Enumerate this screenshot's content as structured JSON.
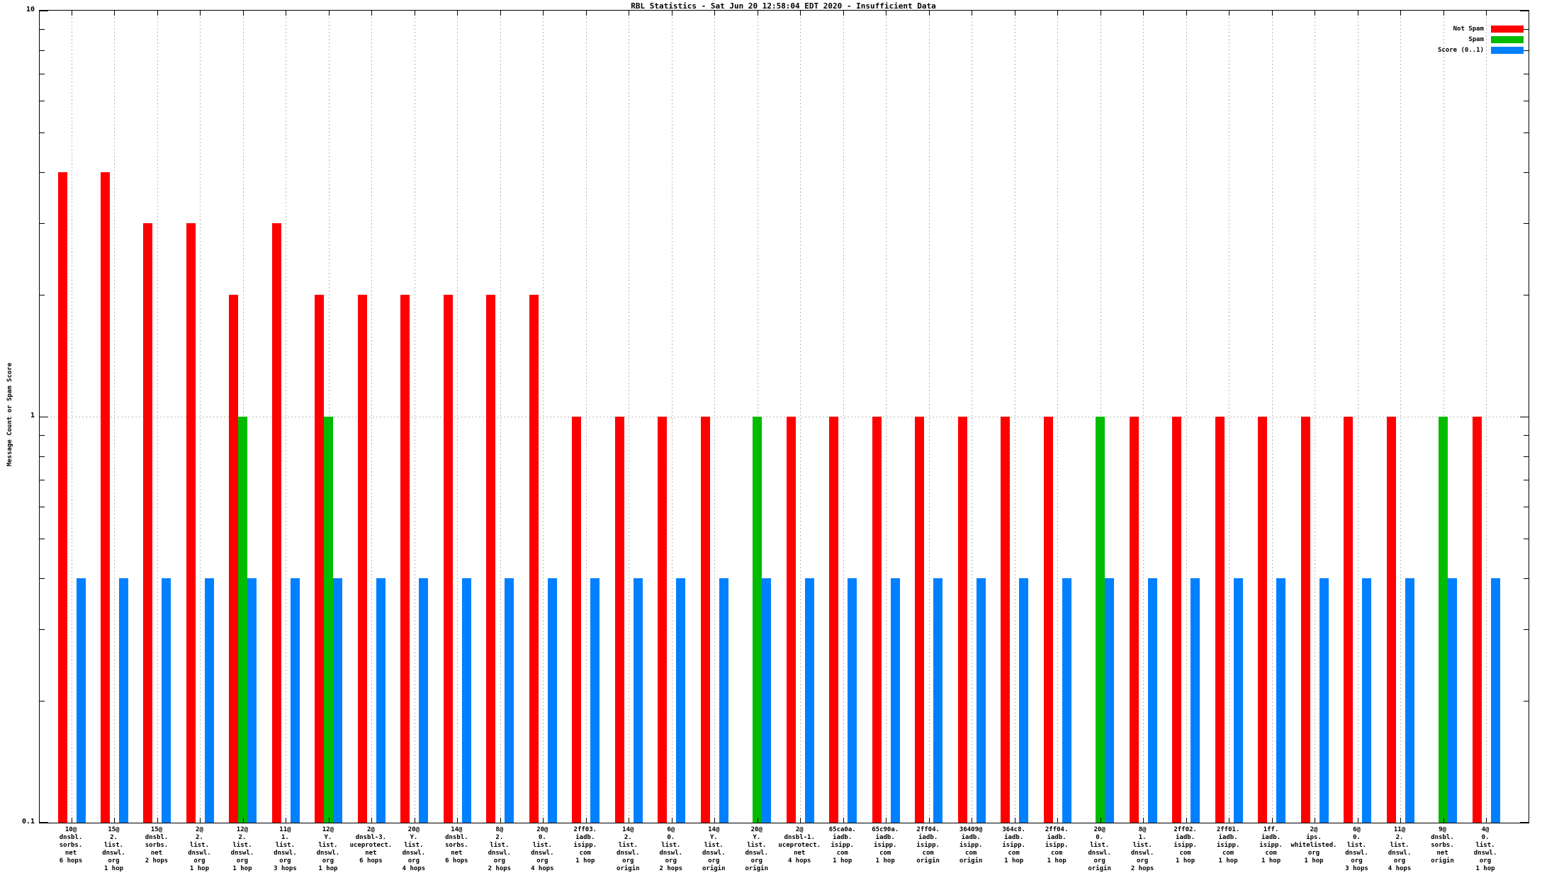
{
  "title": "RBL Statistics - Sat Jun 20 12:58:04 EDT 2020 - Insufficient Data",
  "y_axis": {
    "label": "Message Count or Spam Score",
    "ticks": [
      {
        "label": "10",
        "value": 10
      },
      {
        "label": "1",
        "value": 1
      },
      {
        "label": "0.1",
        "value": 0.1
      }
    ]
  },
  "legend": [
    {
      "label": "Not Spam",
      "color": "#ff0000"
    },
    {
      "label": "Spam",
      "color": "#00bb00"
    },
    {
      "label": "Score (0..1)",
      "color": "#0080ff"
    }
  ],
  "colors": {
    "not_spam": "#ff0000",
    "spam": "#00bb00",
    "score": "#0080ff",
    "grid": "#b8b8b8"
  },
  "chart_data": {
    "type": "bar",
    "scale": "log",
    "ylim": [
      0.1,
      10
    ],
    "grid": true,
    "legend_position": "top-right",
    "title": "RBL Statistics - Sat Jun 20 12:58:04 EDT 2020 - Insufficient Data",
    "xlabel": "",
    "ylabel": "Message Count or Spam Score",
    "categories": [
      "10@\ndnsbl.\nsorbs.\nnet\n6 hops",
      "15@\n2.\nlist.\ndnswl.\norg\n1 hop",
      "15@\ndnsbl.\nsorbs.\nnet\n2 hops",
      "2@\n2.\nlist.\ndnswl.\norg\n1 hop",
      "12@\n2.\nlist.\ndnswl.\norg\n1 hop",
      "11@\n1.\nlist.\ndnswl.\norg\n3 hops",
      "12@\nY.\nlist.\ndnswl.\norg\n1 hop",
      "2@\ndnsbl-3.\nuceprotect.\nnet\n6 hops",
      "20@\nY.\nlist.\ndnswl.\norg\n4 hops",
      "14@\ndnsbl.\nsorbs.\nnet\n6 hops",
      "8@\n2.\nlist.\ndnswl.\norg\n2 hops",
      "20@\n0.\nlist.\ndnswl.\norg\n4 hops",
      "2ff03.\niadb.\nisipp.\ncom\n1 hop",
      "14@\n2.\nlist.\ndnswl.\norg\norigin",
      "6@\n0.\nlist.\ndnswl.\norg\n2 hops",
      "14@\nY.\nlist.\ndnswl.\norg\norigin",
      "20@\nY.\nlist.\ndnswl.\norg\norigin",
      "2@\ndnsbl-1.\nuceprotect.\nnet\n4 hops",
      "65ca0a.\niadb.\nisipp.\ncom\n1 hop",
      "65c90a.\niadb.\nisipp.\ncom\n1 hop",
      "2ff04.\niadb.\nisipp.\ncom\norigin",
      "36409@\niadb.\nisipp.\ncom\norigin",
      "364c8.\niadb.\nisipp.\ncom\n1 hop",
      "2ff04.\niadb.\nisipp.\ncom\n1 hop",
      "20@\n0.\nlist.\ndnswl.\norg\norigin",
      "8@\n1.\nlist.\ndnswl.\norg\n2 hops",
      "2ff02.\niadb.\nisipp.\ncom\n1 hop",
      "2ff01.\niadb.\nisipp.\ncom\n1 hop",
      "1ff.\niadb.\nisipp.\ncom\n1 hop",
      "2@\nips.\nwhitelisted.\norg\n1 hop",
      "6@\n0.\nlist.\ndnswl.\norg\n3 hops",
      "11@\n2.\nlist.\ndnswl.\norg\n4 hops",
      "9@\ndnsbl.\nsorbs.\nnet\norigin",
      "4@\n0.\nlist.\ndnswl.\norg\n1 hop"
    ],
    "series": [
      {
        "name": "Not Spam",
        "color": "#ff0000",
        "values": [
          4,
          4,
          3,
          3,
          2,
          3,
          2,
          2,
          2,
          2,
          2,
          2,
          1,
          1,
          1,
          1,
          null,
          1,
          1,
          1,
          1,
          1,
          1,
          1,
          null,
          1,
          1,
          1,
          1,
          1,
          1,
          1,
          null,
          1
        ]
      },
      {
        "name": "Spam",
        "color": "#00bb00",
        "values": [
          null,
          null,
          null,
          null,
          1,
          null,
          1,
          null,
          null,
          null,
          null,
          null,
          null,
          null,
          null,
          null,
          1,
          null,
          null,
          null,
          null,
          null,
          null,
          null,
          1,
          null,
          null,
          null,
          null,
          null,
          null,
          null,
          1,
          null
        ]
      },
      {
        "name": "Score (0..1)",
        "color": "#0080ff",
        "values": [
          0.4,
          0.4,
          0.4,
          0.4,
          0.4,
          0.4,
          0.4,
          0.4,
          0.4,
          0.4,
          0.4,
          0.4,
          0.4,
          0.4,
          0.4,
          0.4,
          0.4,
          0.4,
          0.4,
          0.4,
          0.4,
          0.4,
          0.4,
          0.4,
          0.4,
          0.4,
          0.4,
          0.4,
          0.4,
          0.4,
          0.4,
          0.4,
          0.4,
          0.4
        ]
      }
    ]
  }
}
